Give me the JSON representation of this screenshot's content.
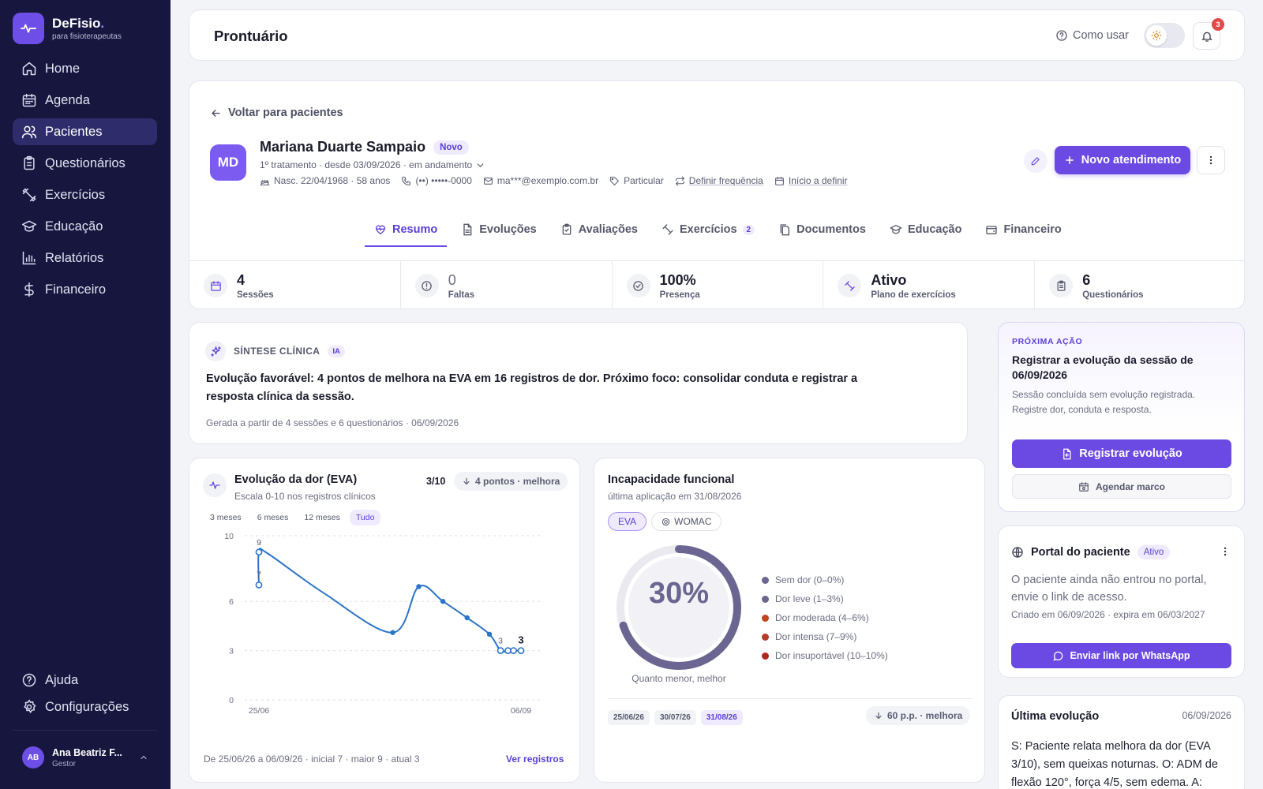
{
  "brand": {
    "name": "DeFisio",
    "dot": ".",
    "tagline": "para fisioterapeutas"
  },
  "nav": {
    "items": [
      {
        "label": "Home",
        "icon": "home-icon"
      },
      {
        "label": "Agenda",
        "icon": "calendar-icon"
      },
      {
        "label": "Pacientes",
        "icon": "users-icon",
        "active": true
      },
      {
        "label": "Questionários",
        "icon": "clipboard-icon"
      },
      {
        "label": "Exercícios",
        "icon": "dumbbell-icon"
      },
      {
        "label": "Educação",
        "icon": "graduation-cap-icon"
      },
      {
        "label": "Relatórios",
        "icon": "bar-chart-icon"
      },
      {
        "label": "Financeiro",
        "icon": "dollar-icon"
      }
    ],
    "bottom": [
      {
        "label": "Ajuda",
        "icon": "help-circle-icon"
      },
      {
        "label": "Configurações",
        "icon": "gear-icon"
      }
    ]
  },
  "user": {
    "initials": "AB",
    "name": "Ana Beatriz F...",
    "role": "Gestor"
  },
  "header": {
    "title": "Prontuário",
    "how_to": "Como usar",
    "notifications": "3"
  },
  "patient": {
    "back": "Voltar para pacientes",
    "initials": "MD",
    "name": "Mariana Duarte Sampaio",
    "badge": "Novo",
    "treatment": "1º tratamento · desde 03/09/2026 · em andamento",
    "birth": "Nasc. 22/04/1968 · 58 anos",
    "phone": "(••) •••••-0000",
    "email": "ma***@exemplo.com.br",
    "plan": "Particular",
    "frequency": "Definir frequência",
    "start": "Início a definir",
    "new_button": "Novo atendimento"
  },
  "tabs": [
    {
      "label": "Resumo",
      "icon": "heart-pulse-icon",
      "active": true
    },
    {
      "label": "Evoluções",
      "icon": "file-text-icon"
    },
    {
      "label": "Avaliações",
      "icon": "clipboard-check-icon"
    },
    {
      "label": "Exercícios",
      "icon": "dumbbell-icon",
      "count": "2"
    },
    {
      "label": "Documentos",
      "icon": "files-icon"
    },
    {
      "label": "Educação",
      "icon": "graduation-cap-icon"
    },
    {
      "label": "Financeiro",
      "icon": "wallet-icon"
    }
  ],
  "stats": [
    {
      "value": "4",
      "label": "Sessões",
      "icon": "calendar-icon"
    },
    {
      "value": "0",
      "label": "Faltas",
      "icon": "alert-circle-icon",
      "muted": true
    },
    {
      "value": "100%",
      "label": "Presença",
      "icon": "check-circle-icon"
    },
    {
      "value": "Ativo",
      "label": "Plano de exercícios",
      "icon": "dumbbell-icon"
    },
    {
      "value": "6",
      "label": "Questionários",
      "icon": "clipboard-icon"
    }
  ],
  "synthesis": {
    "title": "SÍNTESE CLÍNICA",
    "badge": "IA",
    "text": "Evolução favorável: 4 pontos de melhora na EVA em 16 registros de dor. Próximo foco: consolidar conduta e registrar a resposta clínica da sessão.",
    "footer": "Gerada a partir de 4 sessões e 6 questionários · 06/09/2026"
  },
  "next_action": {
    "kicker": "PRÓXIMA AÇÃO",
    "title": "Registrar a evolução da sessão de 06/09/2026",
    "description": "Sessão concluída sem evolução registrada. Registre dor, conduta e resposta.",
    "primary": "Registrar evolução",
    "secondary": "Agendar marco"
  },
  "pain": {
    "title": "Evolução da dor (EVA)",
    "subtitle": "Escala 0-10 nos registros clínicos",
    "score": "3/10",
    "delta": "4 pontos · melhora",
    "ranges": [
      "3 meses",
      "6 meses",
      "12 meses",
      "Tudo"
    ],
    "active_range": 3,
    "footer": "De 25/06/26 a 06/09/26 · inicial 7 · maior 9 · atual 3",
    "link": "Ver registros"
  },
  "chart_data": {
    "type": "line",
    "y_ticks": [
      "10",
      "6",
      "3",
      "0"
    ],
    "x_ticks": [
      "25/06",
      "06/09"
    ],
    "ylim": [
      0,
      10
    ],
    "points": [
      {
        "x": 0,
        "y": 7,
        "label": "7",
        "marker": true
      },
      {
        "x": 0,
        "y": 9,
        "label": "9",
        "marker": true
      },
      {
        "x": 0.5,
        "y": 8.9
      },
      {
        "x": 3.5,
        "y": 6.5
      },
      {
        "x": 7.2,
        "y": 4.1,
        "marker": true
      },
      {
        "x": 8.6,
        "y": 6.9,
        "marker": true
      },
      {
        "x": 9.9,
        "y": 6.0,
        "marker": true
      },
      {
        "x": 11.2,
        "y": 5.0,
        "marker": true
      },
      {
        "x": 12.4,
        "y": 4.0,
        "marker": true
      },
      {
        "x": 13.0,
        "y": 3,
        "label": "3",
        "marker": true
      },
      {
        "x": 13.4,
        "y": 3,
        "marker": true
      },
      {
        "x": 13.7,
        "y": 3,
        "marker": true
      },
      {
        "x": 14.1,
        "y": 3,
        "label": "3",
        "marker": true,
        "last": true
      }
    ],
    "x_max": 14.1
  },
  "disability": {
    "title": "Incapacidade funcional",
    "subtitle": "última aplicação em 31/08/2026",
    "chips": [
      {
        "label": "EVA",
        "active": true
      },
      {
        "label": "WOMAC",
        "icon": "target-icon"
      }
    ],
    "value": "30%",
    "percent": 30,
    "caption": "Quanto menor, melhor",
    "legend": [
      {
        "label": "Sem dor (0–0%)",
        "color": "#6a6691"
      },
      {
        "label": "Dor leve (1–3%)",
        "color": "#6a6691"
      },
      {
        "label": "Dor moderada (4–6%)",
        "color": "#c0441c"
      },
      {
        "label": "Dor intensa (7–9%)",
        "color": "#b83a2a"
      },
      {
        "label": "Dor insuportável (10–10%)",
        "color": "#b3261e"
      }
    ],
    "dates": [
      {
        "label": "25/06/26"
      },
      {
        "label": "30/07/26"
      },
      {
        "label": "31/08/26",
        "active": true
      }
    ],
    "delta": "60 p.p. · melhora"
  },
  "portal": {
    "title": "Portal do paciente",
    "badge": "Ativo",
    "text": "O paciente ainda não entrou no portal, envie o link de acesso.",
    "meta": "Criado em 06/09/2026 · expira em 06/03/2027",
    "button": "Enviar link por WhatsApp"
  },
  "last_evolution": {
    "title": "Última evolução",
    "date": "06/09/2026",
    "text": "S: Paciente relata melhora da dor (EVA 3/10), sem queixas noturnas. O: ADM de flexão 120°, força 4/5, sem edema. A:"
  },
  "colors": {
    "accent": "#6b4ae3",
    "sidebar": "#16163f",
    "line": "#2b74c8"
  }
}
